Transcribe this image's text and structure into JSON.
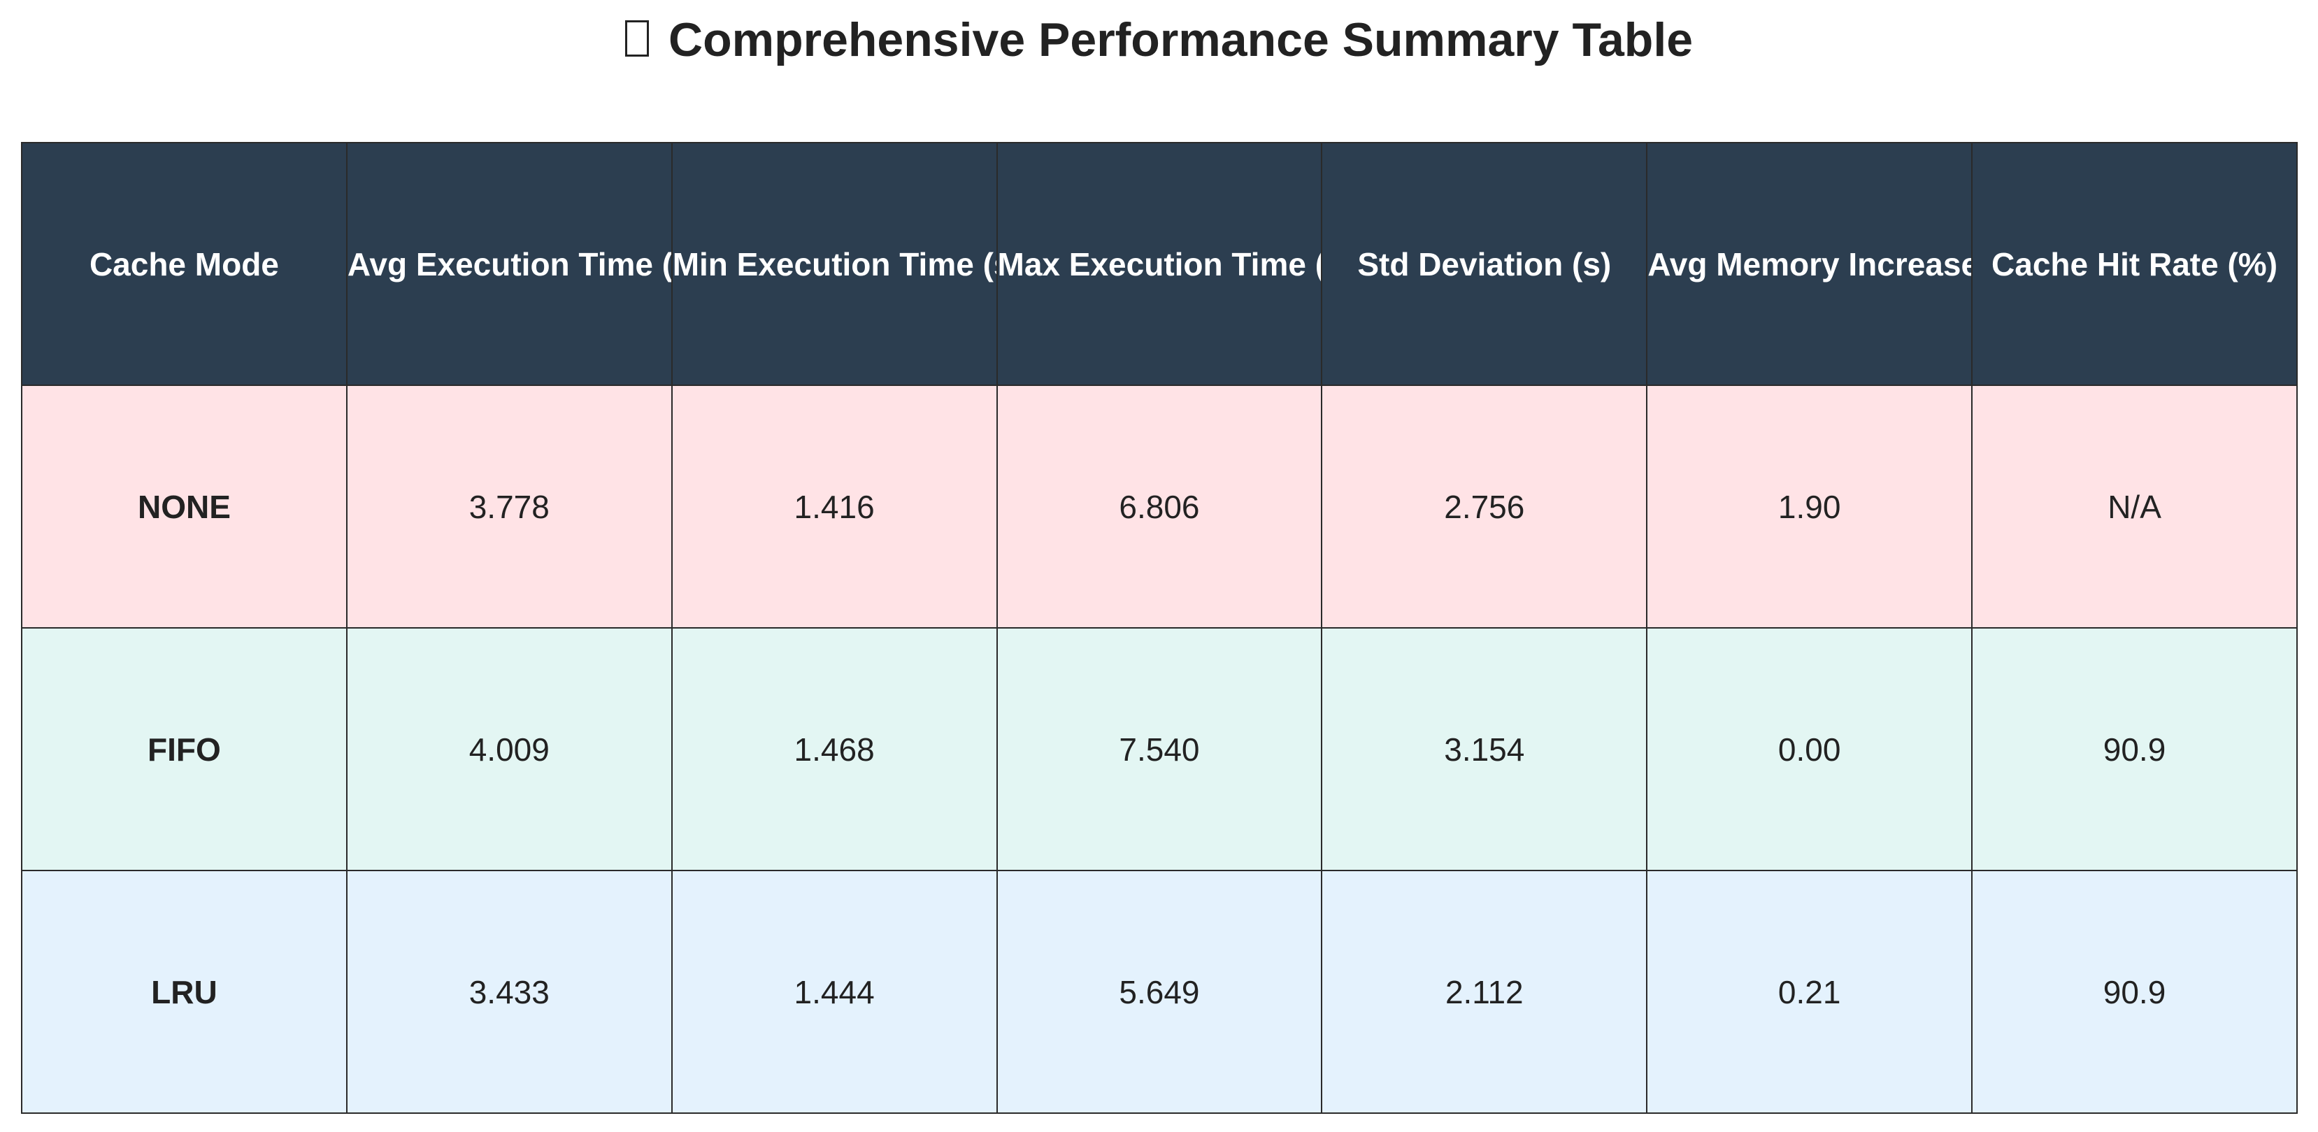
{
  "title": {
    "icon": "chart-icon",
    "text": "Comprehensive Performance Summary Table"
  },
  "colors": {
    "header_bg": "#2c3e50",
    "header_text": "#ffffff",
    "row_none_bg": "#ffe3e6",
    "row_fifo_bg": "#e3f6f3",
    "row_lru_bg": "#e4f2fd",
    "grid": "#2a2a2a"
  },
  "chart_data": {
    "type": "table",
    "title": "Comprehensive Performance Summary Table",
    "columns": [
      "Cache Mode",
      "Avg Execution Time (s)",
      "Min Execution Time (s)",
      "Max Execution Time (s)",
      "Std Deviation (s)",
      "Avg Memory Increase (MB)",
      "Cache Hit Rate (%)"
    ],
    "rows": [
      [
        "NONE",
        "3.778",
        "1.416",
        "6.806",
        "2.756",
        "1.90",
        "N/A"
      ],
      [
        "FIFO",
        "4.009",
        "1.468",
        "7.540",
        "3.154",
        "0.00",
        "90.9"
      ],
      [
        "LRU",
        "3.433",
        "1.444",
        "5.649",
        "2.112",
        "0.21",
        "90.9"
      ]
    ]
  }
}
